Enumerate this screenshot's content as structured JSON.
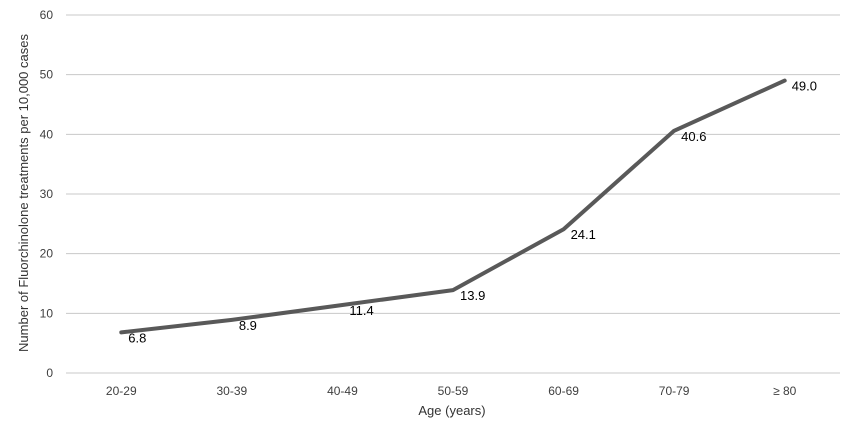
{
  "chart_data": {
    "type": "line",
    "title": "",
    "xlabel": "Age (years)",
    "ylabel": "Number of Fluorchinolone treatments per 10,000 cases",
    "categories": [
      "20-29",
      "30-39",
      "40-49",
      "50-59",
      "60-69",
      "70-79",
      "≥ 80"
    ],
    "series": [
      {
        "values": [
          6.8,
          8.9,
          11.4,
          13.9,
          24.1,
          40.6,
          49.0
        ]
      }
    ],
    "data_labels": [
      "6.8",
      "8.9",
      "11.4",
      "13.9",
      "24.1",
      "40.6",
      "49.0"
    ],
    "ylim": [
      0,
      60
    ],
    "yticks": [
      0,
      10,
      20,
      30,
      40,
      50,
      60
    ],
    "grid": true,
    "legend": "none",
    "colors": {
      "line": "#595959",
      "grid": "#c8c8c8"
    }
  }
}
